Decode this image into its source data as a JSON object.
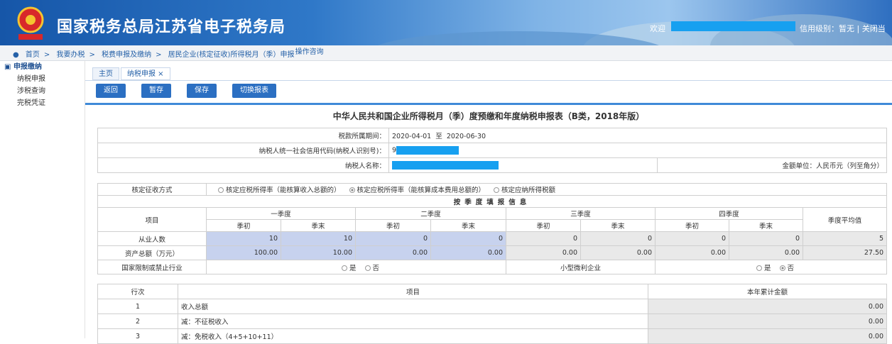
{
  "header": {
    "title": "国家税务总局江苏省电子税务局",
    "welcome": "欢迎",
    "credit": "信用级别：暂无",
    "separator": "|",
    "close": "关闭当"
  },
  "breadcrumb": {
    "items": [
      "首页",
      "我要办税",
      "税费申报及缴纳",
      "居民企业(核定征收)所得税月（季）申报"
    ],
    "separator": ">",
    "help": "操作咨询"
  },
  "sidebar": {
    "title": "申报缴纳",
    "items": [
      "纳税申报",
      "涉税查询",
      "完税凭证"
    ]
  },
  "tabs": [
    "主页",
    "纳税申报 ×"
  ],
  "buttons": [
    "返回",
    "暂存",
    "保存",
    "切换报表"
  ],
  "form": {
    "title": "中华人民共和国企业所得税月（季）度预缴和年度纳税申报表（B类，2018年版）",
    "period_label": "税款所属期间：",
    "period_start": "2020-04-01",
    "period_to": "至",
    "period_end": "2020-06-30",
    "credit_code_label": "纳税人统一社会信用代码(纳税人识别号)：",
    "credit_code": "9",
    "name_label": "纳税人名称：",
    "unit": "金额单位：人民币元（列至角分）"
  },
  "quarterly_table": {
    "method_label": "核定征收方式",
    "method_options": [
      "核定应税所得率（能核算收入总额的）",
      "核定应税所得率（能核算成本费用总额的）",
      "核定应纳所得税额"
    ],
    "section_title": "按季度填报信息",
    "item_header": "项目",
    "quarters": [
      "一季度",
      "二季度",
      "三季度",
      "四季度"
    ],
    "period_headers": [
      "季初",
      "季末"
    ],
    "average_header": "季度平均值",
    "rows": [
      {
        "label": "从业人数",
        "values": [
          "10",
          "10",
          "0",
          "0",
          "0",
          "0",
          "0",
          "0"
        ],
        "average": "5"
      },
      {
        "label": "资产总额（万元）",
        "values": [
          "100.00",
          "10.00",
          "0.00",
          "0.00",
          "0.00",
          "0.00",
          "0.00",
          "0.00"
        ],
        "average": "27.50"
      }
    ],
    "restricted_label": "国家限制或禁止行业",
    "small_label": "小型微利企业",
    "yes": "是",
    "no": "否"
  },
  "detail_table": {
    "headers": [
      "行次",
      "项目",
      "本年累计金额"
    ],
    "rows": [
      [
        "1",
        "收入总额",
        "0.00"
      ],
      [
        "2",
        "减：不征税收入",
        "0.00"
      ],
      [
        "3",
        "减：免税收入（4+5+10+11）",
        "0.00"
      ]
    ]
  }
}
